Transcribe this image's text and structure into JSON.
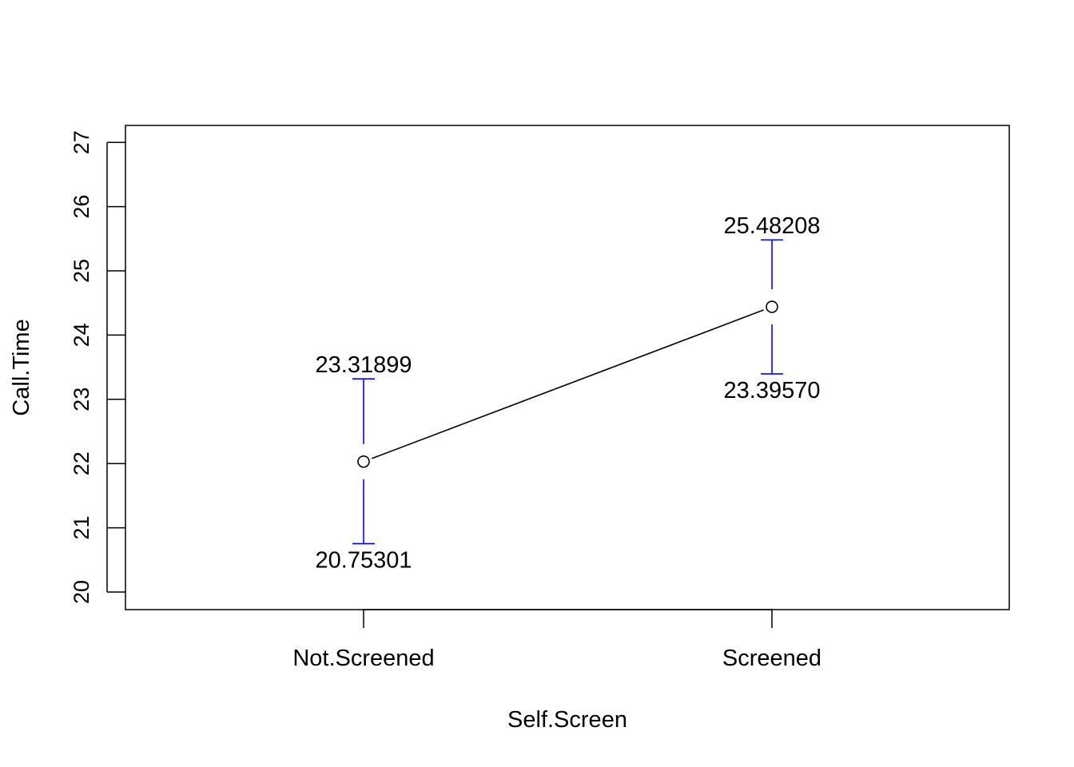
{
  "chart_data": {
    "type": "line",
    "title": "",
    "xlabel": "Self.Screen",
    "ylabel": "Call.Time",
    "categories": [
      "Not.Screened",
      "Screened"
    ],
    "ylim": [
      20,
      27
    ],
    "yticks": [
      "20",
      "21",
      "22",
      "23",
      "24",
      "25",
      "26",
      "27"
    ],
    "series": [
      {
        "values": [
          22.03,
          24.44
        ],
        "upper": [
          23.31899,
          25.48208
        ],
        "lower": [
          20.75301,
          23.3957
        ],
        "upper_labels": [
          "23.31899",
          "25.48208"
        ],
        "lower_labels": [
          "20.75301",
          "23.39570"
        ]
      }
    ],
    "grid": false,
    "colors": {
      "line": "#000000",
      "error_bar": "#0000ff"
    }
  }
}
